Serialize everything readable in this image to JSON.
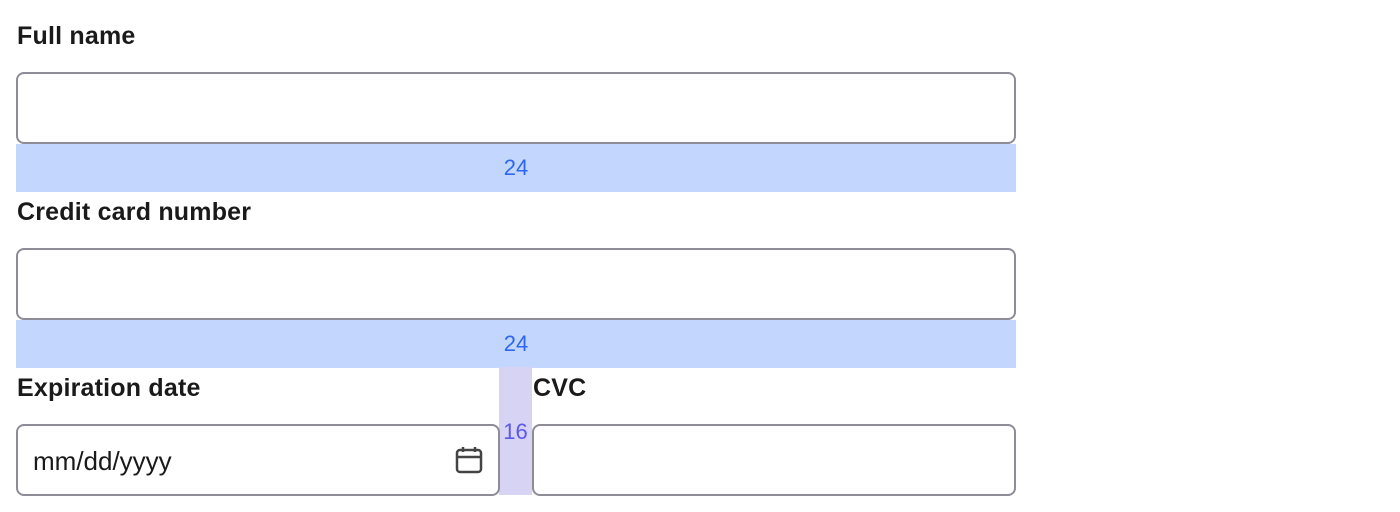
{
  "fields": {
    "full_name": {
      "label": "Full name",
      "value": ""
    },
    "card_number": {
      "label": "Credit card number",
      "value": ""
    },
    "expiration": {
      "label": "Expiration date",
      "placeholder": "mm/dd/yyyy"
    },
    "cvc": {
      "label": "CVC",
      "value": ""
    }
  },
  "spacing": {
    "row_gap_1": "24",
    "row_gap_2": "24",
    "column_gap": "16"
  },
  "colors": {
    "row_gap": "#c2d6fe",
    "column_gap": "#d6d3f5",
    "row_gap_text": "#2f66f0",
    "column_gap_text": "#5b5ae6"
  },
  "icons": {
    "date_picker": "calendar-icon"
  }
}
